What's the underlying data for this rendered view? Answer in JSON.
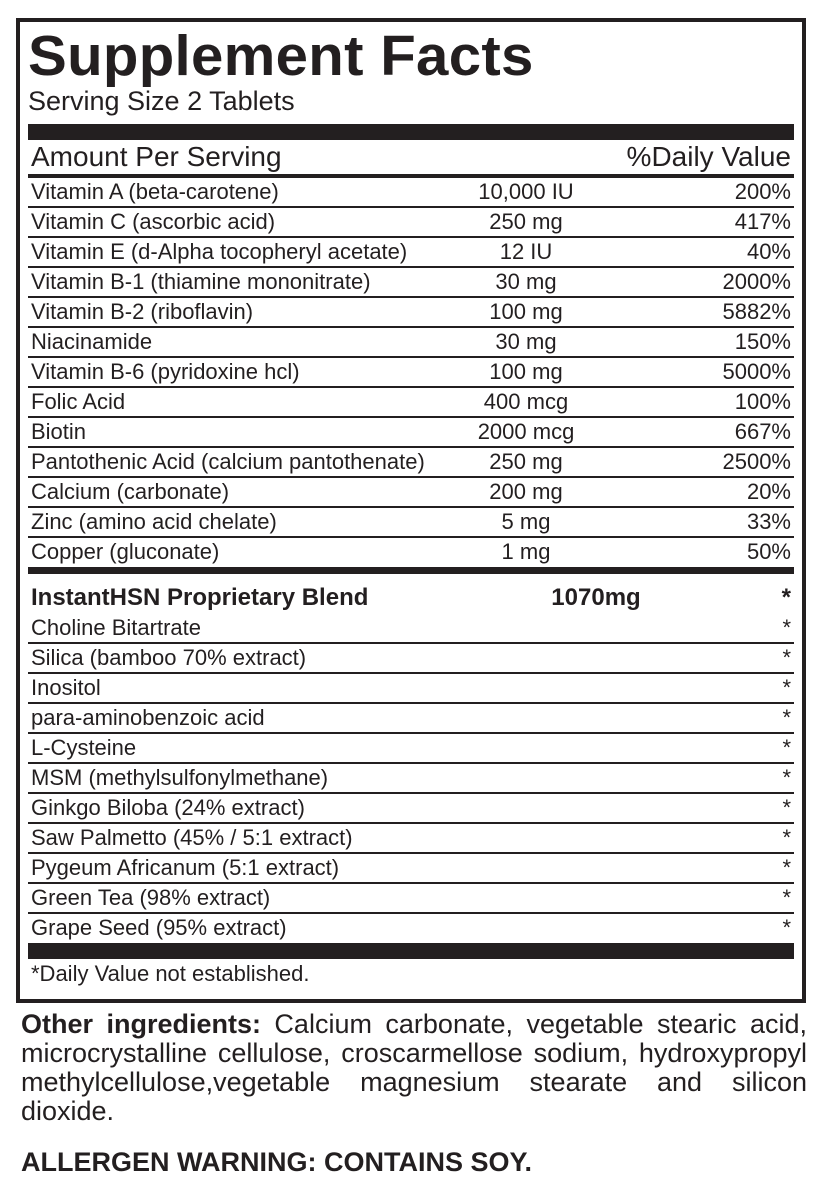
{
  "title": "Supplement Facts",
  "serving_size": "Serving Size 2 Tablets",
  "header": {
    "amount_per_serving": "Amount Per Serving",
    "daily_value": "%Daily Value"
  },
  "nutrients": [
    {
      "name": "Vitamin A (beta-carotene)",
      "amount": "10,000 IU",
      "dv": "200%"
    },
    {
      "name": "Vitamin C (ascorbic acid)",
      "amount": "250 mg",
      "dv": "417%"
    },
    {
      "name": "Vitamin E (d-Alpha tocopheryl acetate)",
      "amount": "12 IU",
      "dv": "40%"
    },
    {
      "name": "Vitamin B-1 (thiamine mononitrate)",
      "amount": "30 mg",
      "dv": "2000%"
    },
    {
      "name": "Vitamin B-2 (riboflavin)",
      "amount": "100 mg",
      "dv": "5882%"
    },
    {
      "name": "Niacinamide",
      "amount": "30 mg",
      "dv": "150%"
    },
    {
      "name": "Vitamin B-6 (pyridoxine hcl)",
      "amount": "100 mg",
      "dv": "5000%"
    },
    {
      "name": "Folic Acid",
      "amount": "400 mcg",
      "dv": "100%"
    },
    {
      "name": "Biotin",
      "amount": "2000 mcg",
      "dv": "667%"
    },
    {
      "name": "Pantothenic Acid (calcium pantothenate)",
      "amount": "250 mg",
      "dv": "2500%"
    },
    {
      "name": "Calcium (carbonate)",
      "amount": "200 mg",
      "dv": "20%"
    },
    {
      "name": "Zinc (amino acid chelate)",
      "amount": "5 mg",
      "dv": "33%"
    },
    {
      "name": "Copper (gluconate)",
      "amount": "1 mg",
      "dv": "50%"
    }
  ],
  "blend": {
    "name": "InstantHSN Proprietary Blend",
    "amount": "1070mg",
    "dv": "*",
    "ingredients": [
      {
        "name": "Choline Bitartrate",
        "dv": "*"
      },
      {
        "name": "Silica (bamboo 70% extract)",
        "dv": "*"
      },
      {
        "name": "Inositol",
        "dv": "*"
      },
      {
        "name": "para-aminobenzoic acid",
        "dv": "*"
      },
      {
        "name": "L-Cysteine",
        "dv": "*"
      },
      {
        "name": "MSM (methylsulfonylmethane)",
        "dv": "*"
      },
      {
        "name": "Ginkgo Biloba (24% extract)",
        "dv": "*"
      },
      {
        "name": "Saw Palmetto (45% / 5:1 extract)",
        "dv": "*"
      },
      {
        "name": "Pygeum Africanum (5:1 extract)",
        "dv": "*"
      },
      {
        "name": "Green Tea (98% extract)",
        "dv": "*"
      },
      {
        "name": "Grape Seed (95% extract)",
        "dv": "*"
      }
    ]
  },
  "footnote": "*Daily Value not established.",
  "other_ingredients": {
    "label": "Other ingredients:",
    "text": " Calcium carbonate, vegetable stearic acid, microcrystalline cellulose, croscarmellose sodium, hydroxypropyl methylcellulose,vegetable magnesium stearate and silicon dioxide."
  },
  "allergen_warning": "ALLERGEN WARNING: CONTAINS SOY."
}
